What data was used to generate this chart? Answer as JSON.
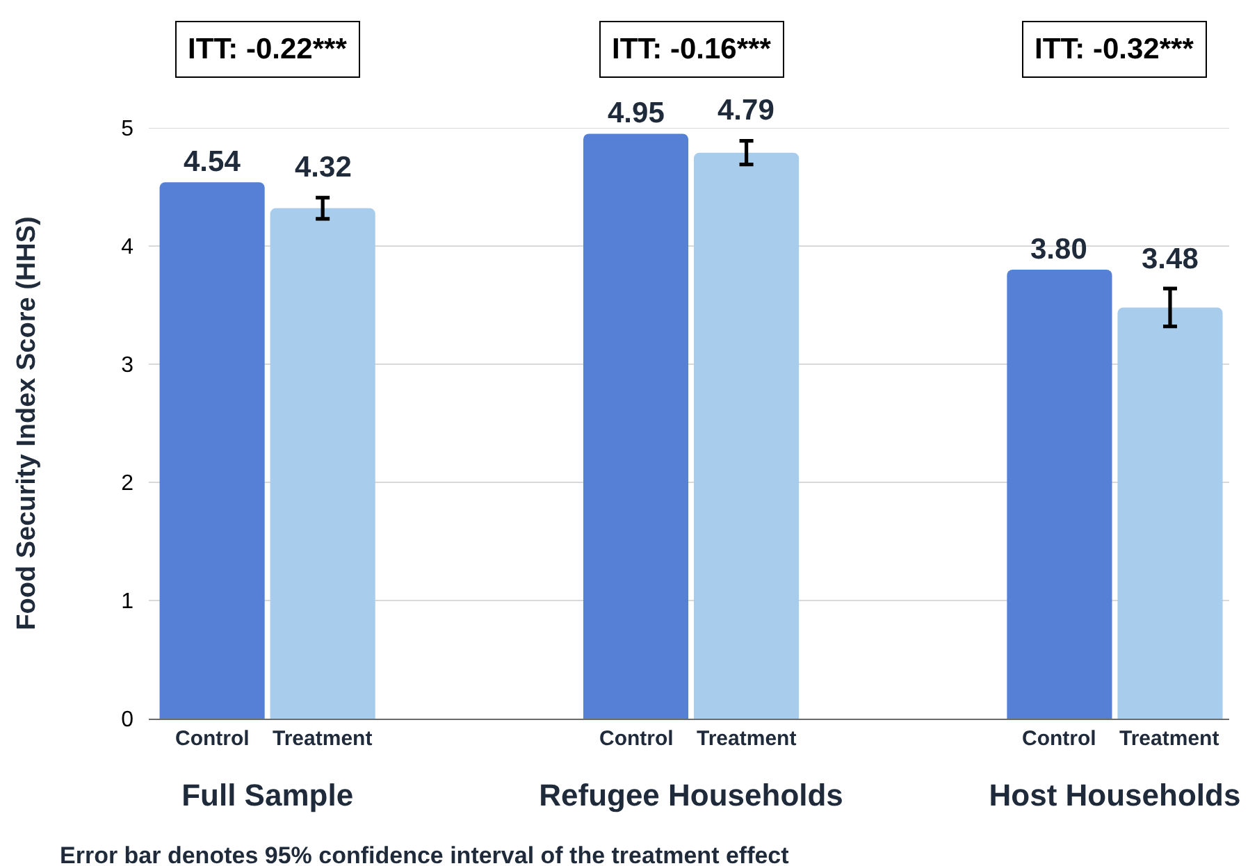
{
  "chart_data": {
    "type": "bar",
    "ylabel": "Food Security Index Score (HHS)",
    "categories": [
      "Full Sample",
      "Refugee Households",
      "Host Households"
    ],
    "series": [
      {
        "name": "Control",
        "color": "#5580d6",
        "values": [
          4.54,
          4.95,
          3.8
        ],
        "value_labels": [
          "4.54",
          "4.95",
          "3.80"
        ]
      },
      {
        "name": "Treatment",
        "color": "#a8ccec",
        "values": [
          4.32,
          4.79,
          3.48
        ],
        "value_labels": [
          "4.32",
          "4.79",
          "3.48"
        ],
        "errors": [
          0.09,
          0.1,
          0.16
        ]
      }
    ],
    "ylim": [
      0,
      5
    ],
    "yticks": [
      0,
      1,
      2,
      3,
      4,
      5
    ],
    "grid": "y",
    "annotations": [
      "ITT: -0.22***",
      "ITT: -0.16***",
      "ITT: -0.32***",
      "Error bar denotes 95% confidence interval of the treatment effect"
    ]
  }
}
